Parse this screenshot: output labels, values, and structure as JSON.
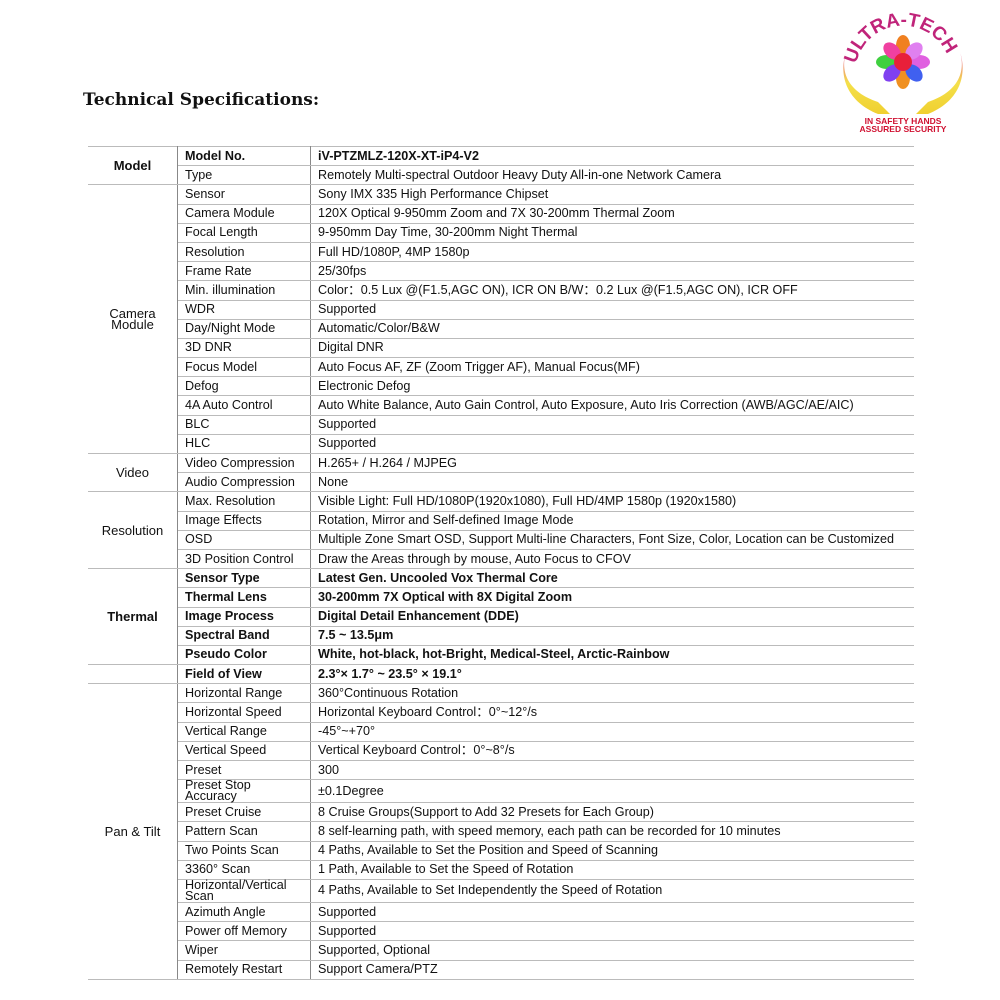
{
  "page_title": "Technical Specifications:",
  "logo": {
    "text_top": "ULTRA-TECH",
    "text_bottom_1": "IN SAFETY HANDS",
    "text_bottom_2": "ASSURED SECURITY"
  },
  "groups": [
    {
      "name": "Model",
      "bold": false,
      "rows": [
        {
          "label": "Model No.",
          "value": "iV-PTZMLZ-120X-XT-iP4-V2",
          "bold": true
        },
        {
          "label": "Type",
          "value": "Remotely Multi-spectral Outdoor Heavy Duty All-in-one Network Camera"
        }
      ]
    },
    {
      "name": "Camera Module",
      "bold": false,
      "rows": [
        {
          "label": "Sensor",
          "value": "Sony IMX 335 High Performance Chipset"
        },
        {
          "label": "Camera Module",
          "value": "120X Optical 9-950mm Zoom and 7X 30-200mm Thermal Zoom"
        },
        {
          "label": "Focal Length",
          "value": "9-950mm Day Time, 30-200mm Night Thermal"
        },
        {
          "label": "Resolution",
          "value": "Full HD/1080P, 4MP 1580p"
        },
        {
          "label": "Frame Rate",
          "value": "25/30fps"
        },
        {
          "label": "Min. illumination",
          "value": "Color：0.5 Lux @(F1.5,AGC ON), ICR ON  B/W：0.2 Lux @(F1.5,AGC ON), ICR OFF"
        },
        {
          "label": "WDR",
          "value": "Supported"
        },
        {
          "label": "Day/Night Mode",
          "value": "Automatic/Color/B&W"
        },
        {
          "label": "3D DNR",
          "value": "Digital DNR"
        },
        {
          "label": "Focus Model",
          "value": "Auto Focus AF, ZF (Zoom Trigger AF), Manual Focus(MF)"
        },
        {
          "label": "Defog",
          "value": "Electronic Defog"
        },
        {
          "label": "4A Auto Control",
          "value": "Auto White Balance, Auto Gain Control, Auto Exposure, Auto Iris Correction (AWB/AGC/AE/AIC)"
        },
        {
          "label": "BLC",
          "value": "Supported"
        },
        {
          "label": "HLC",
          "value": "Supported"
        }
      ]
    },
    {
      "name": "Video",
      "bold": false,
      "rows": [
        {
          "label": "Video Compression",
          "value": "H.265+ / H.264 / MJPEG"
        },
        {
          "label": "Audio Compression",
          "value": "None"
        }
      ]
    },
    {
      "name": "Resolution",
      "bold": false,
      "rows": [
        {
          "label": "Max. Resolution",
          "value": "Visible Light: Full HD/1080P(1920x1080), Full HD/4MP 1580p (1920x1580)"
        },
        {
          "label": "Image Effects",
          "value": "Rotation, Mirror and Self-defined Image Mode"
        },
        {
          "label": "OSD",
          "value": "Multiple Zone Smart OSD, Support Multi-line Characters, Font Size, Color, Location can be Customized"
        },
        {
          "label": "3D Position Control",
          "value": "Draw the Areas through by mouse, Auto Focus to CFOV"
        }
      ]
    },
    {
      "name": "Thermal",
      "bold": true,
      "rows": [
        {
          "label": "Sensor Type",
          "value": "Latest Gen. Uncooled Vox Thermal Core",
          "bold": true
        },
        {
          "label": "Thermal Lens",
          "value": "30-200mm 7X Optical with 8X Digital Zoom",
          "bold": true
        },
        {
          "label": "Image Process",
          "value": "Digital Detail Enhancement (DDE)",
          "bold": true
        },
        {
          "label": "Spectral Band",
          "value": "7.5 ~ 13.5μm",
          "bold": true
        },
        {
          "label": "Pseudo Color",
          "value": "White, hot-black, hot-Bright, Medical-Steel, Arctic-Rainbow",
          "bold": true
        }
      ]
    },
    {
      "name": "",
      "bold": true,
      "rows": [
        {
          "label": "Field of View",
          "value": "2.3°× 1.7° ~ 23.5° × 19.1°",
          "bold": true
        }
      ]
    },
    {
      "name": "Pan & Tilt",
      "bold": false,
      "rows": [
        {
          "label": "Horizontal Range",
          "value": "360°Continuous Rotation"
        },
        {
          "label": "Horizontal Speed",
          "value": "Horizontal Keyboard Control：0°~12°/s"
        },
        {
          "label": "Vertical Range",
          "value": "-45°~+70°"
        },
        {
          "label": "Vertical Speed",
          "value": "Vertical Keyboard Control：0°~8°/s"
        },
        {
          "label": "Preset",
          "value": "300"
        },
        {
          "label": "Preset Stop Accuracy",
          "value": "±0.1Degree"
        },
        {
          "label": "Preset Cruise",
          "value": "8 Cruise Groups(Support to Add 32 Presets for Each Group)"
        },
        {
          "label": "Pattern Scan",
          "value": "8 self-learning path, with speed memory, each path can be recorded for 10 minutes"
        },
        {
          "label": "Two Points Scan",
          "value": "4 Paths, Available to Set the Position and Speed of Scanning"
        },
        {
          "label": "3360° Scan",
          "value": "1 Path, Available to Set the Speed of Rotation"
        },
        {
          "label": "Horizontal/Vertical Scan",
          "value": "4 Paths, Available to Set Independently the Speed of Rotation"
        },
        {
          "label": "Azimuth Angle",
          "value": "Supported"
        },
        {
          "label": "Power off Memory",
          "value": "Supported"
        },
        {
          "label": "Wiper",
          "value": "Supported, Optional"
        },
        {
          "label": "Remotely Restart",
          "value": "Support Camera/PTZ"
        }
      ]
    }
  ]
}
